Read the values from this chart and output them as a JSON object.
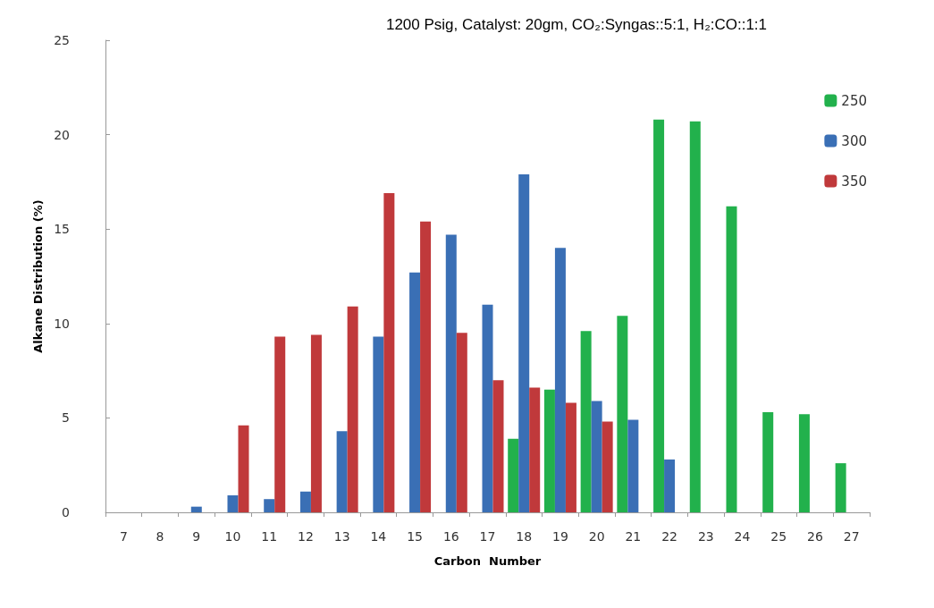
{
  "chart_data": {
    "type": "bar",
    "title": "1200 Psig, Catalyst: 20gm, CO₂:Syngas::5:1, H₂:CO::1:1",
    "xlabel": "Carbon  Number",
    "ylabel": "Alkane Distribution (%)",
    "categories": [
      "7",
      "8",
      "9",
      "10",
      "11",
      "12",
      "13",
      "14",
      "15",
      "16",
      "17",
      "18",
      "19",
      "20",
      "21",
      "22",
      "23",
      "24",
      "25",
      "26",
      "27"
    ],
    "series": [
      {
        "name": "250",
        "color": "#22b14c",
        "values": [
          null,
          null,
          null,
          null,
          null,
          null,
          null,
          null,
          null,
          null,
          null,
          3.9,
          6.5,
          9.6,
          10.4,
          20.8,
          20.7,
          16.2,
          5.3,
          5.2,
          2.6
        ]
      },
      {
        "name": "300",
        "color": "#3a6fb5",
        "values": [
          null,
          null,
          0.3,
          0.9,
          0.7,
          1.1,
          4.3,
          9.3,
          12.7,
          14.7,
          11.0,
          17.9,
          14.0,
          5.9,
          4.9,
          2.8,
          null,
          null,
          null,
          null,
          null
        ]
      },
      {
        "name": "350",
        "color": "#c0393b",
        "values": [
          null,
          null,
          null,
          4.6,
          9.3,
          9.4,
          10.9,
          16.9,
          15.4,
          9.5,
          7.0,
          6.6,
          5.8,
          4.8,
          null,
          null,
          null,
          null,
          null,
          null,
          null
        ]
      }
    ],
    "ylim": [
      0,
      25
    ],
    "yticks": [
      0,
      5,
      10,
      15,
      20,
      25
    ],
    "grid": false,
    "legend": "top right"
  }
}
